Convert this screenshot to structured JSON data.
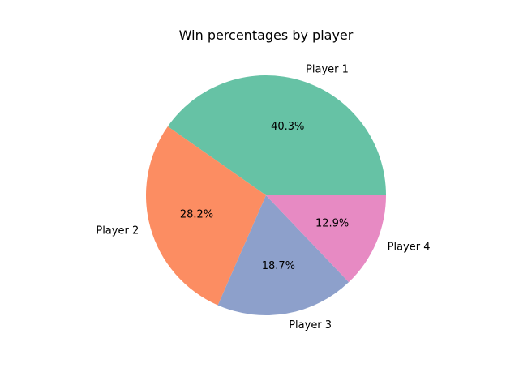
{
  "chart_data": {
    "type": "pie",
    "title": "Win percentages by player",
    "categories": [
      "Player 1",
      "Player 2",
      "Player 3",
      "Player 4"
    ],
    "values": [
      40.3,
      28.2,
      18.7,
      12.9
    ],
    "value_labels": [
      "40.3%",
      "28.2%",
      "18.7%",
      "12.9%"
    ],
    "colors": [
      "#66c2a5",
      "#fc8d62",
      "#8da0cb",
      "#e78ac3"
    ],
    "start_angle": 0,
    "direction": "counterclockwise"
  }
}
